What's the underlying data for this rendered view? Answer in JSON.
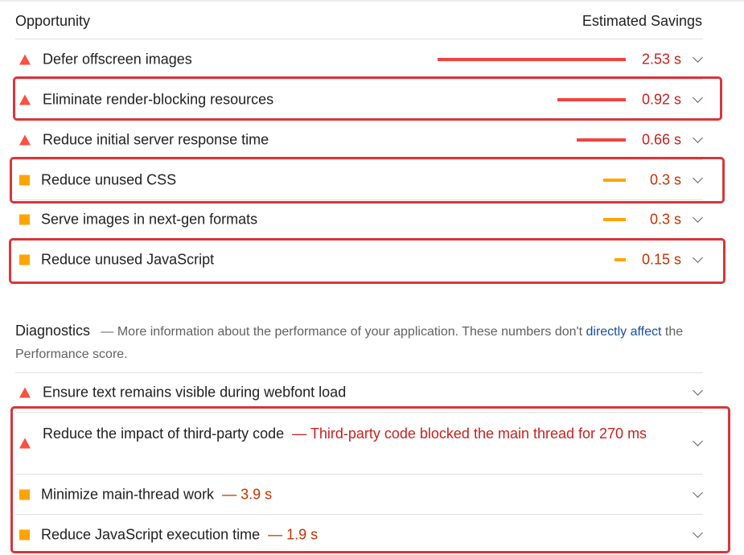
{
  "header": {
    "opportunity_label": "Opportunity",
    "savings_label": "Estimated Savings"
  },
  "opportunities": [
    {
      "title": "Defer offscreen images",
      "savings": "2.53 s",
      "severity": "fail",
      "icon": "red-triangle-icon"
    },
    {
      "title": "Eliminate render-blocking resources",
      "savings": "0.92 s",
      "severity": "fail",
      "icon": "red-triangle-icon"
    },
    {
      "title": "Reduce initial server response time",
      "savings": "0.66 s",
      "severity": "fail",
      "icon": "red-triangle-icon"
    },
    {
      "title": "Reduce unused CSS",
      "savings": "0.3 s",
      "severity": "average",
      "icon": "orange-square-icon"
    },
    {
      "title": "Serve images in next-gen formats",
      "savings": "0.3 s",
      "severity": "average",
      "icon": "orange-square-icon"
    },
    {
      "title": "Reduce unused JavaScript",
      "savings": "0.15 s",
      "severity": "average",
      "icon": "orange-square-icon"
    }
  ],
  "diagnostics": {
    "title": "Diagnostics",
    "dash": "—",
    "description_before": "More information about the performance of your application. These numbers don't ",
    "link_text": "directly affect",
    "description_after": " the Performance score.",
    "items": [
      {
        "title": "Ensure text remains visible during webfont load",
        "detail": "",
        "severity": "fail",
        "icon": "red-triangle-icon"
      },
      {
        "title": "Reduce the impact of third-party code",
        "detail": "— Third-party code blocked the main thread for 270 ms",
        "severity": "fail",
        "icon": "red-triangle-icon"
      },
      {
        "title": "Minimize main-thread work",
        "detail": "— 3.9 s",
        "severity": "average",
        "icon": "orange-square-icon"
      },
      {
        "title": "Reduce JavaScript execution time",
        "detail": "— 1.9 s",
        "severity": "average",
        "icon": "orange-square-icon"
      }
    ]
  },
  "colors": {
    "fail": "#ff4e42",
    "average": "#ffa400",
    "fail_text": "#c7221f",
    "average_text": "#c33300",
    "highlight": "#d7373c",
    "link": "#174ea6"
  }
}
